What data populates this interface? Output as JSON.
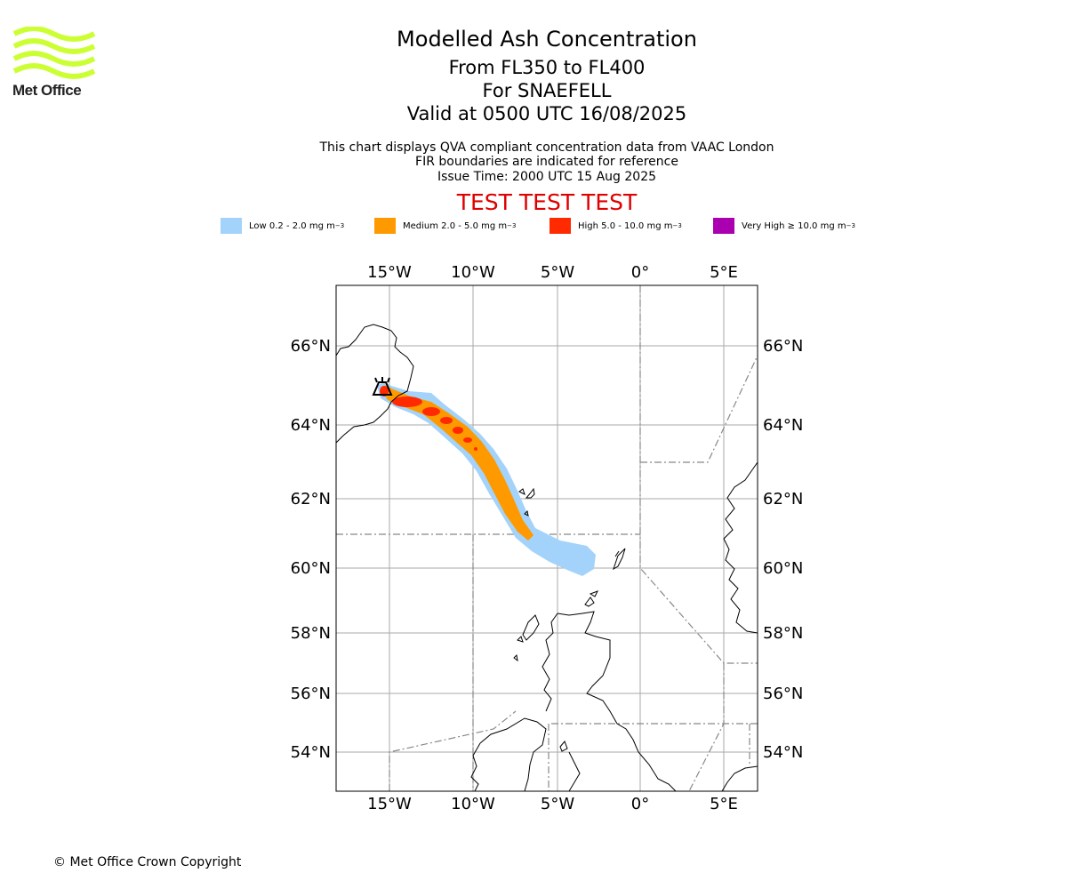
{
  "logo": {
    "text": "Met Office",
    "wave_color": "#ccff33"
  },
  "header": {
    "title": "Modelled Ash Concentration",
    "levels": "From FL350 to FL400",
    "volcano": "For SNAEFELL",
    "valid": "Valid at 0500 UTC 16/08/2025",
    "note_line1": "This chart displays QVA compliant concentration data from VAAC London",
    "note_line2": "FIR boundaries are indicated for reference",
    "issue_time": "Issue Time: 2000 UTC 15 Aug 2025",
    "test_banner": "TEST TEST TEST"
  },
  "legend": [
    {
      "label": "Low 0.2 - 2.0 mg m",
      "color": "#a3d3fa"
    },
    {
      "label": "Medium 2.0 - 5.0 mg m",
      "color": "#ff9900"
    },
    {
      "label": "High 5.0 - 10.0 mg m",
      "color": "#ff2a00"
    },
    {
      "label": "Very High ≥ 10.0 mg m",
      "color": "#aa00b0"
    }
  ],
  "legend_unit_exponent": "−3",
  "map": {
    "lon_labels": [
      "15°W",
      "10°W",
      "5°W",
      "0°",
      "5°E"
    ],
    "lat_labels": [
      "66°N",
      "64°N",
      "62°N",
      "60°N",
      "58°N",
      "56°N",
      "54°N"
    ],
    "colors": {
      "grid": "#aaaaaa",
      "fir": "#888888",
      "coast": "#000000"
    }
  },
  "footer": {
    "copyright": "© Met Office Crown Copyright"
  }
}
